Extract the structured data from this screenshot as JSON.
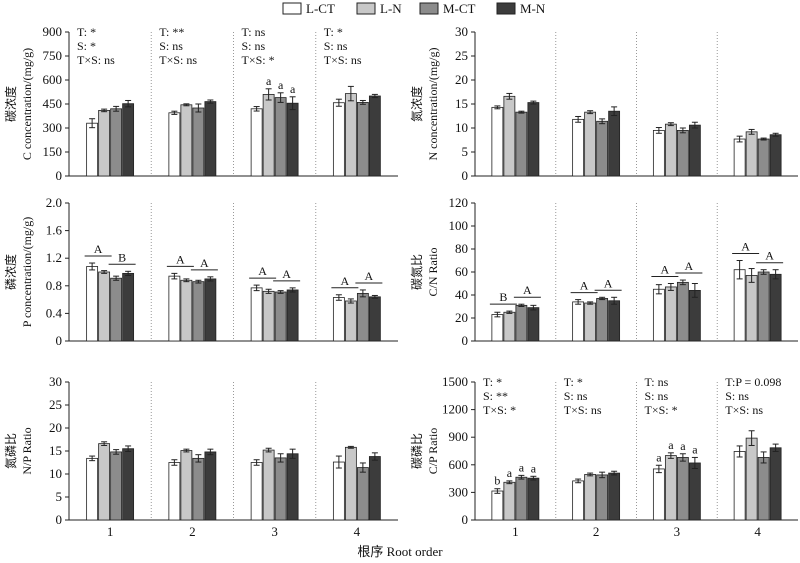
{
  "legend": [
    {
      "label": "L-CT",
      "color": "#ffffff"
    },
    {
      "label": "L-N",
      "color": "#c8c8c8"
    },
    {
      "label": "M-CT",
      "color": "#8c8c8c"
    },
    {
      "label": "M-N",
      "color": "#3c3c3c"
    }
  ],
  "x_axis_title": "根序 Root order",
  "chart_data": [
    {
      "type": "bar",
      "ylabel_cn": "碳浓度",
      "ylabel_en": "C concentration/(mg/g)",
      "ylim": [
        0,
        900
      ],
      "yticks": [
        "0",
        "150",
        "300",
        "450",
        "600",
        "750",
        "900"
      ],
      "categories": [
        "1",
        "2",
        "3",
        "4"
      ],
      "series": [
        {
          "name": "L-CT",
          "values": [
            330,
            395,
            420,
            458
          ],
          "errors": [
            28,
            10,
            14,
            22
          ]
        },
        {
          "name": "L-N",
          "values": [
            410,
            445,
            510,
            515
          ],
          "errors": [
            8,
            6,
            35,
            45
          ]
        },
        {
          "name": "M-CT",
          "values": [
            420,
            425,
            490,
            460
          ],
          "errors": [
            15,
            25,
            30,
            12
          ]
        },
        {
          "name": "M-N",
          "values": [
            452,
            465,
            455,
            500
          ],
          "errors": [
            20,
            10,
            40,
            10
          ]
        }
      ],
      "stats": [
        [
          "T: *",
          "S: *",
          "T×S: ns"
        ],
        [
          "T: **",
          "S: ns",
          "T×S: ns"
        ],
        [
          "T: ns",
          "S: ns",
          "T×S: *"
        ],
        [
          "T: *",
          "S: ns",
          "T×S: ns"
        ]
      ],
      "bar_letters": [
        [],
        [],
        [
          "",
          "a",
          "a",
          "a"
        ],
        []
      ],
      "group_letters": []
    },
    {
      "type": "bar",
      "ylabel_cn": "氮浓度",
      "ylabel_en": "N concentration/(mg/g)",
      "ylim": [
        0,
        30
      ],
      "yticks": [
        "0",
        "5",
        "10",
        "15",
        "20",
        "25",
        "30"
      ],
      "categories": [
        "1",
        "2",
        "3",
        "4"
      ],
      "series": [
        {
          "name": "L-CT",
          "values": [
            14.3,
            11.8,
            9.5,
            7.7
          ],
          "errors": [
            0.3,
            0.6,
            0.6,
            0.6
          ]
        },
        {
          "name": "L-N",
          "values": [
            16.6,
            13.3,
            10.8,
            9.2
          ],
          "errors": [
            0.6,
            0.3,
            0.3,
            0.5
          ]
        },
        {
          "name": "M-CT",
          "values": [
            13.3,
            11.4,
            9.5,
            7.7
          ],
          "errors": [
            0.2,
            0.5,
            0.5,
            0.2
          ]
        },
        {
          "name": "M-N",
          "values": [
            15.3,
            13.5,
            10.6,
            8.6
          ],
          "errors": [
            0.3,
            0.9,
            0.6,
            0.3
          ]
        }
      ],
      "stats": [],
      "bar_letters": [],
      "group_letters": []
    },
    {
      "type": "bar",
      "ylabel_cn": "磷浓度",
      "ylabel_en": "P concentration/(mg/g)",
      "ylim": [
        0,
        2.0
      ],
      "yticks": [
        "0",
        "0.4",
        "0.8",
        "1.2",
        "1.6",
        "2.0"
      ],
      "categories": [
        "1",
        "2",
        "3",
        "4"
      ],
      "series": [
        {
          "name": "L-CT",
          "values": [
            1.08,
            0.94,
            0.77,
            0.63
          ],
          "errors": [
            0.05,
            0.04,
            0.04,
            0.04
          ]
        },
        {
          "name": "L-N",
          "values": [
            1.0,
            0.88,
            0.72,
            0.58
          ],
          "errors": [
            0.02,
            0.02,
            0.03,
            0.03
          ]
        },
        {
          "name": "M-CT",
          "values": [
            0.91,
            0.86,
            0.71,
            0.69
          ],
          "errors": [
            0.03,
            0.02,
            0.02,
            0.05
          ]
        },
        {
          "name": "M-N",
          "values": [
            0.98,
            0.9,
            0.74,
            0.64
          ],
          "errors": [
            0.03,
            0.03,
            0.03,
            0.02
          ]
        }
      ],
      "stats": [],
      "bar_letters": [],
      "group_letters": [
        [
          "A",
          "B"
        ],
        [
          "A",
          "A"
        ],
        [
          "A",
          "A"
        ],
        [
          "A",
          "A"
        ]
      ]
    },
    {
      "type": "bar",
      "ylabel_cn": "碳氮比",
      "ylabel_en": "C/N Ratio",
      "ylim": [
        0,
        120
      ],
      "yticks": [
        "0",
        "20",
        "40",
        "60",
        "80",
        "100",
        "120"
      ],
      "categories": [
        "1",
        "2",
        "3",
        "4"
      ],
      "series": [
        {
          "name": "L-CT",
          "values": [
            23,
            34,
            45,
            62
          ],
          "errors": [
            2,
            2,
            4,
            8
          ]
        },
        {
          "name": "L-N",
          "values": [
            25,
            33,
            47,
            57
          ],
          "errors": [
            1,
            1,
            3,
            6
          ]
        },
        {
          "name": "M-CT",
          "values": [
            31,
            37,
            51,
            60
          ],
          "errors": [
            1,
            1,
            2,
            2
          ]
        },
        {
          "name": "M-N",
          "values": [
            29,
            35,
            44,
            58
          ],
          "errors": [
            2,
            3,
            6,
            4
          ]
        }
      ],
      "stats": [],
      "bar_letters": [],
      "group_letters": [
        [
          "B",
          "A"
        ],
        [
          "A",
          "A"
        ],
        [
          "A",
          "A"
        ],
        [
          "A",
          "A"
        ]
      ]
    },
    {
      "type": "bar",
      "ylabel_cn": "氮磷比",
      "ylabel_en": "N/P Ratio",
      "ylim": [
        0,
        30
      ],
      "yticks": [
        "0",
        "5",
        "10",
        "15",
        "20",
        "25",
        "30"
      ],
      "categories": [
        "1",
        "2",
        "3",
        "4"
      ],
      "series": [
        {
          "name": "L-CT",
          "values": [
            13.4,
            12.5,
            12.5,
            12.6
          ],
          "errors": [
            0.5,
            0.6,
            0.6,
            1.3
          ]
        },
        {
          "name": "L-N",
          "values": [
            16.6,
            15.1,
            15.2,
            15.8
          ],
          "errors": [
            0.4,
            0.3,
            0.4,
            0.2
          ]
        },
        {
          "name": "M-CT",
          "values": [
            14.8,
            13.4,
            13.5,
            11.4
          ],
          "errors": [
            0.5,
            0.8,
            0.9,
            1.0
          ]
        },
        {
          "name": "M-N",
          "values": [
            15.5,
            14.8,
            14.4,
            13.8
          ],
          "errors": [
            0.6,
            0.6,
            1.0,
            0.8
          ]
        }
      ],
      "stats": [],
      "bar_letters": [],
      "group_letters": []
    },
    {
      "type": "bar",
      "ylabel_cn": "碳磷比",
      "ylabel_en": "C/P Ratio",
      "ylim": [
        0,
        1500
      ],
      "yticks": [
        "0",
        "300",
        "600",
        "900",
        "1200",
        "1500"
      ],
      "categories": [
        "1",
        "2",
        "3",
        "4"
      ],
      "series": [
        {
          "name": "L-CT",
          "values": [
            315,
            425,
            555,
            745
          ],
          "errors": [
            25,
            20,
            40,
            60
          ]
        },
        {
          "name": "L-N",
          "values": [
            410,
            495,
            700,
            890
          ],
          "errors": [
            15,
            15,
            30,
            80
          ]
        },
        {
          "name": "M-CT",
          "values": [
            465,
            490,
            680,
            680
          ],
          "errors": [
            20,
            30,
            40,
            60
          ]
        },
        {
          "name": "M-N",
          "values": [
            455,
            510,
            620,
            785
          ],
          "errors": [
            20,
            20,
            60,
            40
          ]
        }
      ],
      "stats": [
        [
          "T: *",
          "S: **",
          "T×S: *"
        ],
        [
          "T: *",
          "S: ns",
          "T×S: ns"
        ],
        [
          "T: ns",
          "S: ns",
          "T×S: *"
        ],
        [
          "T:P = 0.098",
          "S: ns",
          "T×S: ns"
        ]
      ],
      "bar_letters": [
        [
          "b",
          "a",
          "a",
          "a"
        ],
        [],
        [
          "a",
          "a",
          "a",
          "a"
        ],
        []
      ],
      "group_letters": []
    }
  ]
}
